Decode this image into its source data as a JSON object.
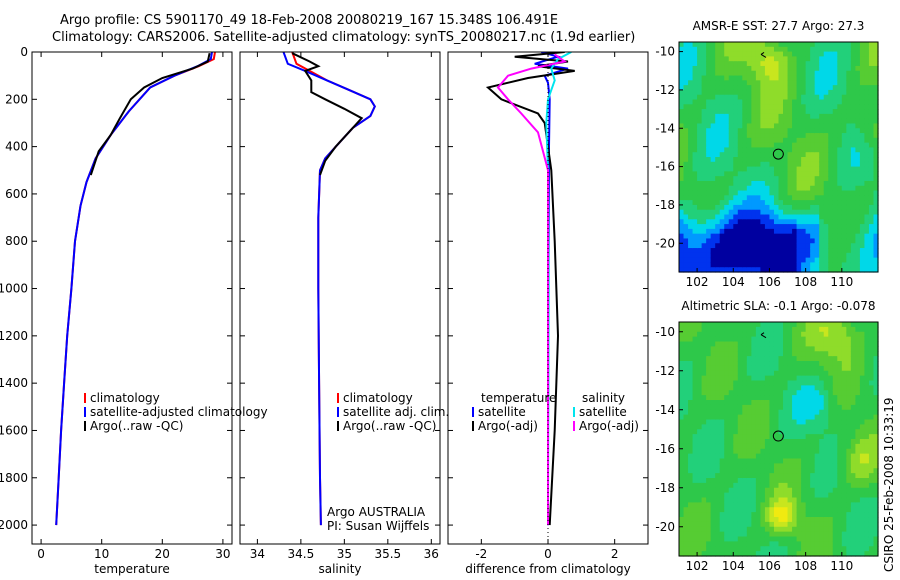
{
  "header": {
    "line1": "Argo profile: CS 5901170_49 18-Feb-2008 20080219_167 15.348S 106.491E",
    "line2": "Climatology: CARS2006. Satellite-adjusted climatology: synTS_20080217.nc (1.9d earlier)"
  },
  "side_label": "CSIRO 25-Feb-2008 10:33:19",
  "colors": {
    "climatology": "#ff0000",
    "satellite": "#0000ff",
    "argo": "#000000",
    "sat_sal": "#00e5ee",
    "argo_adj_sal": "#ff00ff"
  },
  "chart_data": [
    {
      "type": "line",
      "id": "temperature",
      "xlabel": "temperature",
      "ylabel": "",
      "xlim": [
        -1.5,
        31.5
      ],
      "ylim": [
        2080,
        0
      ],
      "xticks": [
        0,
        10,
        20,
        30
      ],
      "xtick_labels": [
        "0",
        "10",
        "20",
        "30"
      ],
      "yticks": [
        0,
        200,
        400,
        600,
        800,
        1000,
        1200,
        1400,
        1600,
        1800,
        2000
      ],
      "ytick_labels": [
        "0",
        "200",
        "400",
        "600",
        "800",
        "1000",
        "1200",
        "1400",
        "1600",
        "1800",
        "2000"
      ],
      "series": [
        {
          "name": "climatology",
          "color": "#ff0000",
          "points": [
            [
              28.7,
              0
            ],
            [
              28.5,
              30
            ],
            [
              26,
              60
            ],
            [
              22,
              100
            ],
            [
              18,
              150
            ],
            [
              14.5,
              250
            ],
            [
              11.5,
              350
            ],
            [
              9,
              450
            ],
            [
              7.5,
              550
            ],
            [
              6.5,
              650
            ],
            [
              5.6,
              800
            ],
            [
              5,
              1000
            ],
            [
              4.3,
              1200
            ],
            [
              3.8,
              1400
            ],
            [
              3.3,
              1600
            ],
            [
              2.9,
              1800
            ],
            [
              2.5,
              2000
            ]
          ]
        },
        {
          "name": "satellite-adjusted climatology",
          "color": "#0000ff",
          "points": [
            [
              28.2,
              0
            ],
            [
              28,
              30
            ],
            [
              25.8,
              60
            ],
            [
              22,
              100
            ],
            [
              18,
              150
            ],
            [
              14.5,
              250
            ],
            [
              11.5,
              350
            ],
            [
              9,
              450
            ],
            [
              7.5,
              550
            ],
            [
              6.5,
              650
            ],
            [
              5.6,
              800
            ],
            [
              5,
              1000
            ],
            [
              4.3,
              1200
            ],
            [
              3.8,
              1400
            ],
            [
              3.3,
              1600
            ],
            [
              2.9,
              1800
            ],
            [
              2.5,
              2000
            ]
          ]
        },
        {
          "name": "Argo(..raw -QC)",
          "color": "#000000",
          "points": [
            [
              27.8,
              5
            ],
            [
              27.5,
              40
            ],
            [
              25,
              70
            ],
            [
              20,
              110
            ],
            [
              17,
              150
            ],
            [
              14.8,
              200
            ],
            [
              13,
              280
            ],
            [
              11.5,
              350
            ],
            [
              9.5,
              420
            ],
            [
              8.2,
              520
            ]
          ]
        }
      ],
      "legend": {
        "position": "lower-right",
        "entries": [
          "climatology",
          "satellite-adjusted climatology",
          "Argo(..raw -QC)"
        ]
      }
    },
    {
      "type": "line",
      "id": "salinity",
      "xlabel": "salinity",
      "xlim": [
        33.8,
        36.1
      ],
      "ylim": [
        2080,
        0
      ],
      "xticks": [
        34,
        34.5,
        35,
        35.5,
        36
      ],
      "xtick_labels": [
        "34",
        "34.5",
        "35",
        "35.5",
        "36"
      ],
      "series": [
        {
          "name": "climatology",
          "color": "#ff0000",
          "points": [
            [
              34.4,
              0
            ],
            [
              34.45,
              50
            ],
            [
              34.6,
              80
            ],
            [
              34.8,
              120
            ],
            [
              35.05,
              160
            ],
            [
              35.3,
              200
            ],
            [
              35.35,
              230
            ],
            [
              35.3,
              270
            ],
            [
              35.1,
              320
            ],
            [
              34.95,
              380
            ],
            [
              34.78,
              450
            ],
            [
              34.72,
              500
            ],
            [
              34.7,
              700
            ],
            [
              34.7,
              1000
            ],
            [
              34.71,
              1400
            ],
            [
              34.72,
              1800
            ],
            [
              34.73,
              2000
            ]
          ]
        },
        {
          "name": "satellite adj. clim.",
          "color": "#0000ff",
          "points": [
            [
              34.3,
              0
            ],
            [
              34.35,
              50
            ],
            [
              34.55,
              80
            ],
            [
              34.8,
              120
            ],
            [
              35.05,
              160
            ],
            [
              35.3,
              200
            ],
            [
              35.35,
              230
            ],
            [
              35.3,
              270
            ],
            [
              35.1,
              320
            ],
            [
              34.95,
              380
            ],
            [
              34.78,
              450
            ],
            [
              34.72,
              500
            ],
            [
              34.7,
              700
            ],
            [
              34.7,
              1000
            ],
            [
              34.71,
              1400
            ],
            [
              34.72,
              1800
            ],
            [
              34.73,
              2000
            ]
          ]
        },
        {
          "name": "Argo(..raw -QC)",
          "color": "#000000",
          "points": [
            [
              34.4,
              5
            ],
            [
              34.6,
              40
            ],
            [
              34.7,
              60
            ],
            [
              34.55,
              80
            ],
            [
              34.62,
              120
            ],
            [
              34.62,
              170
            ],
            [
              34.78,
              200
            ],
            [
              35.0,
              240
            ],
            [
              35.2,
              280
            ],
            [
              35.1,
              320
            ],
            [
              34.9,
              400
            ],
            [
              34.78,
              460
            ],
            [
              34.72,
              520
            ]
          ]
        }
      ],
      "legend": {
        "position": "lower-right",
        "entries": [
          "climatology",
          "satellite adj. clim.",
          "Argo(..raw -QC)"
        ]
      },
      "annotations": [
        "Argo AUSTRALIA",
        "PI: Susan Wijffels"
      ]
    },
    {
      "type": "line",
      "id": "difference",
      "xlabel": "difference from climatology",
      "xlim": [
        -3,
        3
      ],
      "ylim": [
        2080,
        0
      ],
      "xticks": [
        -2,
        0,
        2
      ],
      "xtick_labels": [
        "-2",
        "0",
        "2"
      ],
      "series": [
        {
          "name": "temperature satellite",
          "color": "#0000ff",
          "points": [
            [
              -0.2,
              0
            ],
            [
              0.3,
              20
            ],
            [
              -0.4,
              50
            ],
            [
              0.6,
              70
            ],
            [
              -0.1,
              100
            ],
            [
              0,
              130
            ],
            [
              0.05,
              200
            ],
            [
              0.03,
              400
            ],
            [
              0.02,
              800
            ],
            [
              0.01,
              1200
            ],
            [
              0,
              1600
            ],
            [
              0,
              2000
            ]
          ]
        },
        {
          "name": "temperature Argo(-adj)",
          "color": "#000000",
          "points": [
            [
              0.5,
              0
            ],
            [
              -1,
              20
            ],
            [
              0.6,
              40
            ],
            [
              -0.3,
              60
            ],
            [
              0.8,
              80
            ],
            [
              -0.6,
              110
            ],
            [
              -1.8,
              150
            ],
            [
              -1.4,
              200
            ],
            [
              -0.3,
              260
            ],
            [
              -0.1,
              300
            ],
            [
              0,
              400
            ],
            [
              0.1,
              500
            ],
            [
              0.2,
              800
            ],
            [
              0.3,
              1200
            ],
            [
              0.2,
              1600
            ],
            [
              0.05,
              2000
            ]
          ]
        },
        {
          "name": "salinity satellite",
          "color": "#00e5ee",
          "points": [
            [
              0.7,
              0
            ],
            [
              0.3,
              30
            ],
            [
              0.1,
              70
            ],
            [
              0.2,
              120
            ],
            [
              0,
              200
            ],
            [
              -0.05,
              300
            ],
            [
              0,
              500
            ],
            [
              0.02,
              1000
            ],
            [
              0.01,
              1500
            ],
            [
              0,
              2000
            ]
          ]
        },
        {
          "name": "salinity Argo(-adj)",
          "color": "#ff00ff",
          "points": [
            [
              0.2,
              10
            ],
            [
              0.5,
              40
            ],
            [
              -0.5,
              70
            ],
            [
              -1.2,
              100
            ],
            [
              -1.5,
              150
            ],
            [
              -1.2,
              200
            ],
            [
              -0.8,
              260
            ],
            [
              -0.3,
              340
            ],
            [
              -0.15,
              420
            ],
            [
              0,
              500
            ],
            [
              0,
              1000
            ],
            [
              0,
              1600
            ],
            [
              0,
              2000
            ]
          ]
        }
      ],
      "legend_temperature": {
        "header": "temperature",
        "entries": [
          "satellite",
          "Argo(-adj)"
        ]
      },
      "legend_salinity": {
        "header": "salinity",
        "entries": [
          "satellite",
          "Argo(-adj)"
        ]
      }
    },
    {
      "type": "heatmap",
      "id": "sst_map",
      "title": "AMSR-E SST: 27.7 Argo: 27.3",
      "xlim": [
        101,
        112
      ],
      "ylim": [
        -21.5,
        -9.5
      ],
      "xticks": [
        102,
        104,
        106,
        108,
        110
      ],
      "yticks": [
        -10,
        -12,
        -14,
        -16,
        -18,
        -20
      ],
      "marker": {
        "lon": 106.491,
        "lat": -15.348
      }
    },
    {
      "type": "heatmap",
      "id": "sla_map",
      "title": "Altimetric SLA: -0.1 Argo: -0.078",
      "xlim": [
        101,
        112
      ],
      "ylim": [
        -21.5,
        -9.5
      ],
      "xticks": [
        102,
        104,
        106,
        108,
        110
      ],
      "yticks": [
        -10,
        -12,
        -14,
        -16,
        -18,
        -20
      ],
      "marker": {
        "lon": 106.491,
        "lat": -15.348
      }
    }
  ]
}
